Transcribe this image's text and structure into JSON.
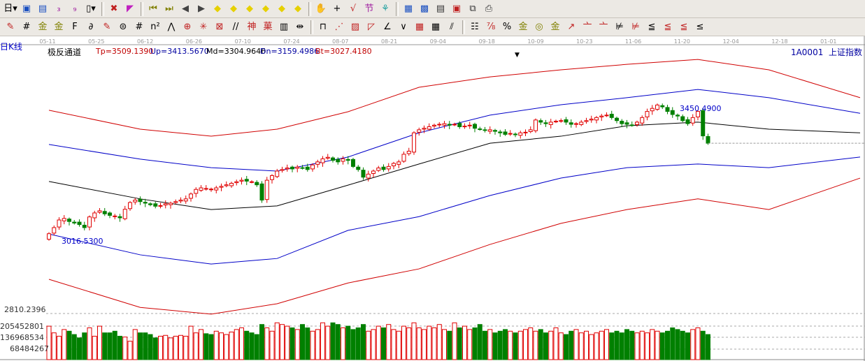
{
  "toolbar_row1": [
    {
      "icon": "period-day-icon",
      "glyph": "日▾",
      "color": "#000"
    },
    {
      "icon": "window-icon",
      "glyph": "▣",
      "color": "#1a4fc0"
    },
    {
      "icon": "list-icon",
      "glyph": "▤",
      "color": "#1a4fc0"
    },
    {
      "icon": "3-day-chart-icon",
      "glyph": "₃",
      "color": "#a020a0"
    },
    {
      "icon": "9-day-chart-icon",
      "glyph": "₉",
      "color": "#a020a0"
    },
    {
      "icon": "candle-type-icon",
      "glyph": "▯▾",
      "color": "#000"
    },
    {
      "sep": true
    },
    {
      "icon": "restore-icon",
      "glyph": "✖",
      "color": "#c02020"
    },
    {
      "icon": "flag-icon",
      "glyph": "◤",
      "color": "#c020c0"
    },
    {
      "sep": true
    },
    {
      "icon": "first-icon",
      "glyph": "⏮",
      "color": "#808000"
    },
    {
      "icon": "last-icon",
      "glyph": "⏭",
      "color": "#808000"
    },
    {
      "icon": "left-icon",
      "glyph": "◀",
      "color": "#444"
    },
    {
      "icon": "right-icon",
      "glyph": "▶",
      "color": "#444"
    },
    {
      "icon": "move-left-icon",
      "glyph": "◆",
      "color": "#e6d000"
    },
    {
      "icon": "move-right-icon",
      "glyph": "◆",
      "color": "#e6d000"
    },
    {
      "icon": "zoom-in-h-icon",
      "glyph": "◆",
      "color": "#e6d000"
    },
    {
      "icon": "zoom-out-h-icon",
      "glyph": "◆",
      "color": "#e6d000"
    },
    {
      "icon": "zoom-in-icon",
      "glyph": "◆",
      "color": "#e6d000"
    },
    {
      "icon": "zoom-out-icon",
      "glyph": "◆",
      "color": "#e6d000"
    },
    {
      "sep": true
    },
    {
      "icon": "hand-icon",
      "glyph": "✋",
      "color": "#333"
    },
    {
      "icon": "crosshair-icon",
      "glyph": "+",
      "color": "#000"
    },
    {
      "icon": "draw-icon",
      "glyph": "√",
      "color": "#c02020"
    },
    {
      "icon": "festival-icon",
      "glyph": "节",
      "color": "#a020a0"
    },
    {
      "icon": "info-icon",
      "glyph": "⚘",
      "color": "#20a0a0"
    },
    {
      "sep": true
    },
    {
      "icon": "calendar-icon",
      "glyph": "▦",
      "color": "#1a4fc0"
    },
    {
      "icon": "calculator-icon",
      "glyph": "▩",
      "color": "#1a4fc0"
    },
    {
      "icon": "document-icon",
      "glyph": "▤",
      "color": "#333"
    },
    {
      "icon": "save-icon",
      "glyph": "▣",
      "color": "#c02020"
    },
    {
      "icon": "network-icon",
      "glyph": "⧉",
      "color": "#333"
    },
    {
      "icon": "print-icon",
      "glyph": "⎙",
      "color": "#333"
    }
  ],
  "toolbar_row2": [
    {
      "icon": "pencil-icon",
      "glyph": "✎",
      "color": "#c02020"
    },
    {
      "icon": "grid-icon",
      "glyph": "#",
      "color": "#000"
    },
    {
      "icon": "gold-line-icon",
      "glyph": "金",
      "color": "#808000"
    },
    {
      "icon": "gold-line2-icon",
      "glyph": "金",
      "color": "#808000"
    },
    {
      "icon": "fib-icon",
      "glyph": "F",
      "color": "#000"
    },
    {
      "icon": "spiral-icon",
      "glyph": "∂",
      "color": "#000"
    },
    {
      "icon": "eraser-icon",
      "glyph": "✎",
      "color": "#c02020"
    },
    {
      "icon": "circle-icon",
      "glyph": "⊜",
      "color": "#000"
    },
    {
      "icon": "parallel-icon",
      "glyph": "#",
      "color": "#000"
    },
    {
      "icon": "n2-icon",
      "glyph": "n²",
      "color": "#000"
    },
    {
      "icon": "fan-icon",
      "glyph": "⋀",
      "color": "#000"
    },
    {
      "icon": "target-icon",
      "glyph": "⊕",
      "color": "#c02020"
    },
    {
      "icon": "star-icon",
      "glyph": "✳",
      "color": "#c02020"
    },
    {
      "icon": "box-icon",
      "glyph": "⊠",
      "color": "#c02020"
    },
    {
      "icon": "lines-icon",
      "glyph": "//",
      "color": "#000"
    },
    {
      "icon": "god-icon",
      "glyph": "神",
      "color": "#c02020"
    },
    {
      "icon": "cai-icon",
      "glyph": "菓",
      "color": "#c02020"
    },
    {
      "icon": "period-icon",
      "glyph": "▥",
      "color": "#000"
    },
    {
      "icon": "measure-icon",
      "glyph": "⇹",
      "color": "#000"
    },
    {
      "sep": true
    },
    {
      "icon": "rect-icon",
      "glyph": "⊓",
      "color": "#000"
    },
    {
      "icon": "ray-icon",
      "glyph": "⋰",
      "color": "#c02020"
    },
    {
      "icon": "box-fan-icon",
      "glyph": "▨",
      "color": "#c02020"
    },
    {
      "icon": "gann-icon",
      "glyph": "◸",
      "color": "#c02020"
    },
    {
      "icon": "angle-icon",
      "glyph": "∠",
      "color": "#000"
    },
    {
      "icon": "vline-icon",
      "glyph": "∨",
      "color": "#000"
    },
    {
      "icon": "grid2-icon",
      "glyph": "▦",
      "color": "#c02020"
    },
    {
      "icon": "grid3-icon",
      "glyph": "▦",
      "color": "#000"
    },
    {
      "icon": "slash-icon",
      "glyph": "⫽",
      "color": "#000"
    },
    {
      "sep": true
    },
    {
      "icon": "table-icon",
      "glyph": "☷",
      "color": "#000"
    },
    {
      "icon": "percent-line-icon",
      "glyph": "⅞",
      "color": "#c02020"
    },
    {
      "icon": "percent-icon",
      "glyph": "%",
      "color": "#000"
    },
    {
      "icon": "coin-icon",
      "glyph": "金",
      "color": "#808000"
    },
    {
      "icon": "gold2-icon",
      "glyph": "◎",
      "color": "#808000"
    },
    {
      "icon": "gold3-icon",
      "glyph": "金",
      "color": "#808000"
    },
    {
      "icon": "arrow-icon",
      "glyph": "↗",
      "color": "#c02020"
    },
    {
      "icon": "pattern1-icon",
      "glyph": "亠",
      "color": "#c02020"
    },
    {
      "icon": "pattern2-icon",
      "glyph": "亠",
      "color": "#c02020"
    },
    {
      "icon": "pattern3-icon",
      "glyph": "⊭",
      "color": "#000"
    },
    {
      "icon": "pattern4-icon",
      "glyph": "⊭",
      "color": "#c02020"
    },
    {
      "icon": "pattern5-icon",
      "glyph": "≦",
      "color": "#000"
    },
    {
      "icon": "pattern6-icon",
      "glyph": "≦",
      "color": "#c02020"
    },
    {
      "icon": "pattern7-icon",
      "glyph": "≦",
      "color": "#c02020"
    },
    {
      "icon": "pattern8-icon",
      "glyph": "≤",
      "color": "#000"
    }
  ],
  "header": {
    "period": "日K线",
    "indicator": "极反通道",
    "tp": "Tp=3509.1390",
    "up": "Up=3413.5670",
    "md": "Md=3304.9646",
    "dn": "Dn=3159.4986",
    "bt": "Bt=3027.4180",
    "code": "1A0001",
    "name": "上证指数"
  },
  "dates": [
    "05-11",
    "05-25",
    "06-12",
    "06-26",
    "07-10",
    "07-24",
    "08-07",
    "08-21",
    "09-04",
    "09-18",
    "10-09",
    "10-23",
    "11-06",
    "11-20",
    "12-04",
    "12-18",
    "01-01"
  ],
  "colors": {
    "up": "#e00000",
    "down": "#008000",
    "upper_red": "#d00000",
    "blue": "#0000c8",
    "mid": "#000000"
  },
  "chart_data": {
    "type": "candlestick",
    "price_axis_labels": [
      "2810.2396"
    ],
    "max_label": "3450.4900",
    "min_label": "3016.5300",
    "closes": [
      3040,
      3060,
      3085,
      3090,
      3080,
      3075,
      3070,
      3060,
      3095,
      3108,
      3115,
      3105,
      3100,
      3098,
      3092,
      3120,
      3142,
      3150,
      3145,
      3140,
      3135,
      3130,
      3132,
      3138,
      3140,
      3145,
      3150,
      3154,
      3170,
      3185,
      3190,
      3188,
      3186,
      3190,
      3195,
      3200,
      3205,
      3210,
      3215,
      3212,
      3210,
      3200,
      3150,
      3215,
      3230,
      3245,
      3250,
      3255,
      3252,
      3258,
      3255,
      3250,
      3265,
      3275,
      3285,
      3290,
      3280,
      3275,
      3285,
      3280,
      3260,
      3250,
      3225,
      3235,
      3245,
      3255,
      3250,
      3260,
      3270,
      3275,
      3300,
      3310,
      3370,
      3380,
      3385,
      3390,
      3395,
      3398,
      3400,
      3395,
      3398,
      3390,
      3392,
      3395,
      3385,
      3382,
      3378,
      3380,
      3375,
      3370,
      3365,
      3368,
      3365,
      3370,
      3372,
      3380,
      3412,
      3405,
      3400,
      3405,
      3408,
      3410,
      3405,
      3398,
      3400,
      3405,
      3410,
      3415,
      3420,
      3425,
      3428,
      3420,
      3410,
      3400,
      3398,
      3395,
      3405,
      3420,
      3440,
      3450,
      3461,
      3455,
      3440,
      3430,
      3425,
      3410,
      3400,
      3420,
      3440,
      3360,
      3336
    ],
    "bands": {
      "tp": [
        3444,
        3382,
        3359,
        3382,
        3439,
        3519,
        3553,
        3576,
        3594,
        3610,
        3576,
        3485
      ],
      "up": [
        3332,
        3284,
        3256,
        3245,
        3291,
        3370,
        3428,
        3462,
        3485,
        3512,
        3485,
        3434
      ],
      "md": [
        3211,
        3154,
        3119,
        3131,
        3199,
        3268,
        3336,
        3359,
        3393,
        3405,
        3382,
        3370
      ],
      "dn": [
        3039,
        2971,
        2941,
        2959,
        3051,
        3096,
        3165,
        3222,
        3256,
        3268,
        3256,
        3291
      ],
      "bt": [
        2891,
        2799,
        2777,
        2811,
        2879,
        2925,
        3005,
        3074,
        3119,
        3154,
        3119,
        3222
      ]
    },
    "volume_axis_labels": [
      "205452801",
      "136968534",
      "68484267"
    ],
    "volumes": [
      200000000.0,
      160000000.0,
      140000000.0,
      180000000.0,
      170000000.0,
      150000000.0,
      130000000.0,
      160000000.0,
      190000000.0,
      140000000.0,
      200000000.0,
      160000000.0,
      160000000.0,
      170000000.0,
      140000000.0,
      135000000.0,
      110000000.0,
      180000000.0,
      160000000.0,
      160000000.0,
      150000000.0,
      130000000.0,
      140000000.0,
      145000000.0,
      130000000.0,
      140000000.0,
      145000000.0,
      140000000.0,
      200000000.0,
      160000000.0,
      180000000.0,
      155000000.0,
      150000000.0,
      170000000.0,
      160000000.0,
      150000000.0,
      165000000.0,
      180000000.0,
      190000000.0,
      170000000.0,
      160000000.0,
      150000000.0,
      210000000.0,
      190000000.0,
      170000000.0,
      220000000.0,
      210000000.0,
      200000000.0,
      190000000.0,
      180000000.0,
      210000000.0,
      190000000.0,
      170000000.0,
      180000000.0,
      220000000.0,
      200000000.0,
      220000000.0,
      210000000.0,
      190000000.0,
      200000000.0,
      180000000.0,
      190000000.0,
      210000000.0,
      170000000.0,
      180000000.0,
      200000000.0,
      190000000.0,
      210000000.0,
      180000000.0,
      170000000.0,
      200000000.0,
      190000000.0,
      220000000.0,
      190000000.0,
      180000000.0,
      200000000.0,
      190000000.0,
      210000000.0,
      180000000.0,
      170000000.0,
      220000000.0,
      190000000.0,
      200000000.0,
      180000000.0,
      190000000.0,
      210000000.0,
      170000000.0,
      180000000.0,
      160000000.0,
      170000000.0,
      180000000.0,
      170000000.0,
      160000000.0,
      170000000.0,
      180000000.0,
      190000000.0,
      170000000.0,
      180000000.0,
      160000000.0,
      170000000.0,
      190000000.0,
      160000000.0,
      150000000.0,
      170000000.0,
      180000000.0,
      160000000.0,
      170000000.0,
      150000000.0,
      160000000.0,
      170000000.0,
      180000000.0,
      160000000.0,
      170000000.0,
      160000000.0,
      180000000.0,
      170000000.0,
      160000000.0,
      170000000.0,
      160000000.0,
      180000000.0,
      170000000.0,
      160000000.0,
      170000000.0,
      190000000.0,
      180000000.0,
      170000000.0,
      160000000.0,
      180000000.0,
      190000000.0,
      170000000.0,
      150000000.0
    ]
  }
}
